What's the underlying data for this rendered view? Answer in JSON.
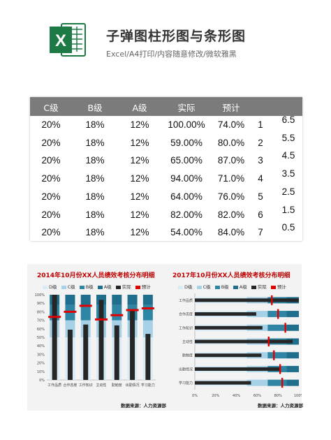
{
  "header": {
    "logo_letter": "X",
    "title": "子弹图柱形图与条形图",
    "subtitle": "Excel/A4打印/内容随意修改/微软雅黑"
  },
  "table": {
    "columns": [
      "C级",
      "B级",
      "A级",
      "实际",
      "预计"
    ],
    "rows": [
      {
        "c": "20%",
        "b": "18%",
        "a": "12%",
        "actual": "100.00%",
        "plan": "74.0%",
        "idx": "1",
        "y": "6.5"
      },
      {
        "c": "20%",
        "b": "18%",
        "a": "12%",
        "actual": "59.00%",
        "plan": "80.0%",
        "idx": "2",
        "y": "5.5"
      },
      {
        "c": "20%",
        "b": "18%",
        "a": "12%",
        "actual": "65.00%",
        "plan": "87.0%",
        "idx": "3",
        "y": "4.5"
      },
      {
        "c": "20%",
        "b": "18%",
        "a": "12%",
        "actual": "94.00%",
        "plan": "71.0%",
        "idx": "4",
        "y": "3.5"
      },
      {
        "c": "20%",
        "b": "18%",
        "a": "12%",
        "actual": "64.00%",
        "plan": "76.0%",
        "idx": "5",
        "y": "2.5"
      },
      {
        "c": "20%",
        "b": "18%",
        "a": "12%",
        "actual": "82.00%",
        "plan": "82.0%",
        "idx": "6",
        "y": "1.5"
      },
      {
        "c": "20%",
        "b": "18%",
        "a": "12%",
        "actual": "54.00%",
        "plan": "84.0%",
        "idx": "7",
        "y": "0.5"
      }
    ]
  },
  "colors": {
    "d": "#d9ebf5",
    "c": "#a6d1e6",
    "b": "#2e86a4",
    "a": "#1f6e8c",
    "actual": "#262626",
    "plan": "#e00000",
    "title_red": "#c00000"
  },
  "chart_data": [
    {
      "type": "bar",
      "title": "2014年10月份XX人员绩效考核分布明细",
      "legend": [
        "D级",
        "C级",
        "B级",
        "A级",
        "实际",
        "预计"
      ],
      "legend_position": "top",
      "categories": [
        "工作品质",
        "合作态度",
        "工作知识",
        "主动性",
        "勤勉度",
        "出勤情况",
        "学习能力"
      ],
      "bands": {
        "D级": 50,
        "C级": 20,
        "B级": 18,
        "A级": 12
      },
      "series": [
        {
          "name": "实际",
          "values": [
            100,
            59,
            65,
            94,
            64,
            82,
            54
          ]
        },
        {
          "name": "预计",
          "values": [
            74,
            80,
            87,
            71,
            76,
            82,
            84
          ]
        }
      ],
      "ylim": [
        0,
        100
      ],
      "yticks": [
        "0%",
        "10%",
        "20%",
        "30%",
        "40%",
        "50%",
        "60%",
        "70%",
        "80%",
        "90%",
        "100%"
      ],
      "source": "数据来源：人力资源部"
    },
    {
      "type": "bar",
      "orientation": "horizontal",
      "title": "2017年10月份XX人员绩效考核分布明细",
      "legend": [
        "D级",
        "C级",
        "B级",
        "A级",
        "实际",
        "预计"
      ],
      "legend_position": "top",
      "categories": [
        "工作品质",
        "合作态度",
        "工作知识",
        "主动性",
        "勤勉度",
        "出勤情况",
        "学习能力"
      ],
      "bands": {
        "D级": 50,
        "C级": 20,
        "B级": 18,
        "A级": 12
      },
      "series": [
        {
          "name": "实际",
          "values": [
            100,
            59,
            65,
            94,
            64,
            82,
            54
          ]
        },
        {
          "name": "预计",
          "values": [
            74,
            80,
            87,
            71,
            76,
            82,
            84
          ]
        }
      ],
      "xlim": [
        0,
        100
      ],
      "xticks": [
        "0%",
        "20%",
        "40%",
        "60%",
        "80%",
        "100%"
      ],
      "source": "数据来源：人力资源部"
    }
  ]
}
